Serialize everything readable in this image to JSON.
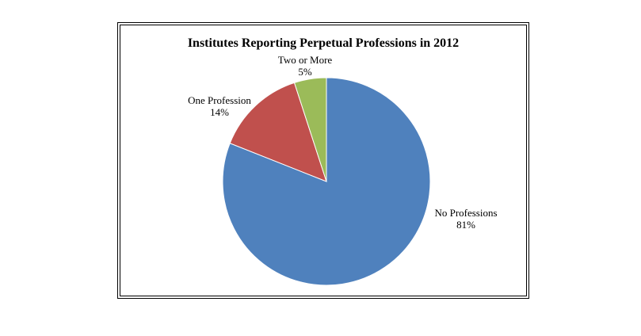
{
  "chart_data": {
    "type": "pie",
    "title": "Institutes Reporting Perpetual Professions in 2012",
    "slices": [
      {
        "label": "No Professions",
        "value": 81,
        "value_label": "81%",
        "color": "#4F81BD"
      },
      {
        "label": "One Profession",
        "value": 14,
        "value_label": "14%",
        "color": "#C0504D"
      },
      {
        "label": "Two or More",
        "value": 5,
        "value_label": "5%",
        "color": "#9BBB59"
      }
    ],
    "start_angle": "12 o'clock",
    "direction": "clockwise",
    "legend": "none"
  }
}
